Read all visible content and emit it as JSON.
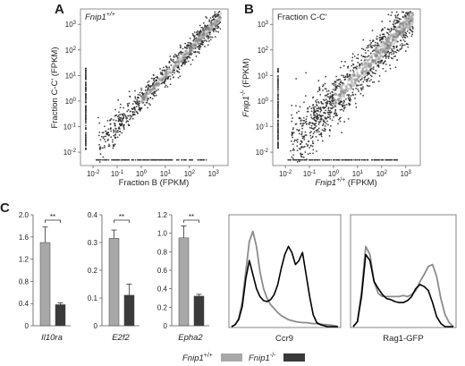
{
  "panel_letters": {
    "a": "A",
    "b": "B",
    "c": "C"
  },
  "chart_data": [
    {
      "type": "scatter",
      "panel": "A",
      "annotation": "Fnip1+/+",
      "xlabel": "Fraction B (FPKM)",
      "ylabel": "Fraction C-C' (FPKM)",
      "scale": "log10",
      "xlim": [
        0.003,
        4000
      ],
      "ylim": [
        0.003,
        4000
      ],
      "ticks": [
        "10-2",
        "10-1",
        "100",
        "101",
        "102",
        "103"
      ],
      "correlation_spread_log10": 0.22,
      "n_points_drawn": 900
    },
    {
      "type": "scatter",
      "panel": "B",
      "annotation": "Fraction C-C'",
      "xlabel": "Fnip1+/+ (FPKM)",
      "ylabel": "Fnip1-/- (FPKM)",
      "scale": "log10",
      "xlim": [
        0.003,
        4000
      ],
      "ylim": [
        0.003,
        4000
      ],
      "ticks": [
        "10-2",
        "10-1",
        "100",
        "101",
        "102",
        "103"
      ],
      "correlation_spread_log10": 0.42,
      "n_points_drawn": 1300
    },
    {
      "type": "bar",
      "panel": "C",
      "gene": "Il10ra",
      "categories": [
        "Fnip1+/+",
        "Fnip1-/-"
      ],
      "values": [
        1.5,
        0.38
      ],
      "errors": [
        0.28,
        0.03
      ],
      "ylim": [
        0,
        2.0
      ],
      "yticks": [
        "0",
        "0.4",
        "0.8",
        "1.2",
        "1.6",
        "2.0"
      ],
      "significance": "**"
    },
    {
      "type": "bar",
      "panel": "C",
      "gene": "E2f2",
      "categories": [
        "Fnip1+/+",
        "Fnip1-/-"
      ],
      "values": [
        0.315,
        0.11
      ],
      "errors": [
        0.03,
        0.04
      ],
      "ylim": [
        0,
        0.4
      ],
      "yticks": [
        "0",
        "0.1",
        "0.2",
        "0.3",
        "0.4"
      ],
      "significance": "**"
    },
    {
      "type": "bar",
      "panel": "C",
      "gene": "Epha2",
      "categories": [
        "Fnip1+/+",
        "Fnip1-/-"
      ],
      "values": [
        0.95,
        0.32
      ],
      "errors": [
        0.13,
        0.02
      ],
      "ylim": [
        0,
        1.2
      ],
      "yticks": [
        "0",
        "0.2",
        "0.4",
        "0.6",
        "0.8",
        "1.0",
        "1.2"
      ],
      "significance": "**"
    },
    {
      "type": "line",
      "panel": "C",
      "xlabel": "Ccr9",
      "series": [
        {
          "name": "Fnip1+/+",
          "values": [
            0,
            0.02,
            0.08,
            0.25,
            0.55,
            0.85,
            0.95,
            0.8,
            0.55,
            0.38,
            0.28,
            0.22,
            0.18,
            0.14,
            0.11,
            0.09,
            0.07,
            0.06,
            0.05,
            0.045,
            0.04,
            0.04,
            0.035,
            0.03,
            0.03,
            0.025,
            0.02,
            0.02,
            0.015,
            0.01,
            0.0
          ]
        },
        {
          "name": "Fnip1-/-",
          "values": [
            0,
            0.02,
            0.07,
            0.2,
            0.48,
            0.66,
            0.52,
            0.38,
            0.3,
            0.26,
            0.25,
            0.27,
            0.32,
            0.42,
            0.58,
            0.72,
            0.8,
            0.74,
            0.62,
            0.66,
            0.74,
            0.52,
            0.3,
            0.12,
            0.04,
            0.02,
            0.01,
            0.0,
            0.0,
            0.0,
            0.0
          ]
        }
      ]
    },
    {
      "type": "line",
      "panel": "C",
      "xlabel": "Rag1-GFP",
      "series": [
        {
          "name": "Fnip1+/+",
          "values": [
            0,
            0.05,
            0.35,
            0.8,
            0.72,
            0.45,
            0.33,
            0.3,
            0.3,
            0.3,
            0.3,
            0.3,
            0.31,
            0.3,
            0.32,
            0.36,
            0.45,
            0.52,
            0.6,
            0.62,
            0.5,
            0.28,
            0.12,
            0.04,
            0.0
          ]
        },
        {
          "name": "Fnip1-/-",
          "values": [
            0,
            0.05,
            0.3,
            0.72,
            0.66,
            0.45,
            0.38,
            0.32,
            0.28,
            0.27,
            0.25,
            0.24,
            0.24,
            0.26,
            0.3,
            0.38,
            0.42,
            0.4,
            0.36,
            0.24,
            0.1,
            0.03,
            0.0,
            0.0,
            0.0
          ]
        }
      ]
    }
  ],
  "legend": [
    {
      "genotype": "Fnip1",
      "superscript": "+/+",
      "color": "#a8a8a8"
    },
    {
      "genotype": "Fnip1",
      "superscript": "-/-",
      "color": "#3a3a3a"
    }
  ],
  "colors": {
    "wt": "#a8a8a8",
    "ko": "#3a3a3a",
    "hist_wt": "#8c8c8c",
    "hist_ko": "#000000"
  }
}
